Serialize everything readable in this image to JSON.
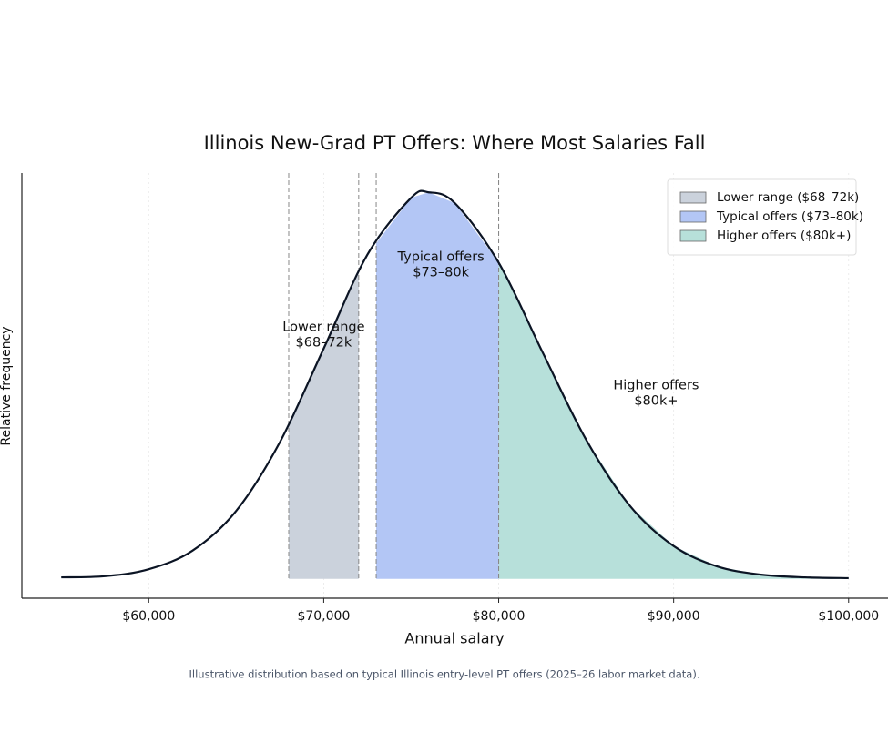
{
  "chart_data": {
    "type": "density",
    "title": "Illinois New-Grad PT Offers: Where Most Salaries Fall",
    "x_label": "Annual salary",
    "y_label": "Relative frequency",
    "footnote": "Illustrative distribution based on typical Illinois entry-level PT offers (2025–26 labor market data).",
    "x": [
      55000,
      57500,
      60000,
      62500,
      65000,
      67500,
      70000,
      72500,
      75000,
      76000,
      77500,
      80000,
      82500,
      85000,
      87500,
      90000,
      92500,
      95000,
      97500,
      100000
    ],
    "values": [
      0.004,
      0.007,
      0.025,
      0.073,
      0.176,
      0.354,
      0.596,
      0.839,
      0.986,
      1,
      0.972,
      0.818,
      0.587,
      0.36,
      0.189,
      0.085,
      0.032,
      0.011,
      0.004,
      0.002
    ],
    "color": "#0b1424",
    "xlim": [
      52750,
      102250
    ],
    "ylim": [
      -0.05,
      1.05
    ],
    "xticks": [
      {
        "value": 60000,
        "label": "$60,000"
      },
      {
        "value": 70000,
        "label": "$70,000"
      },
      {
        "value": 80000,
        "label": "$80,000"
      },
      {
        "value": 90000,
        "label": "$90,000"
      },
      {
        "value": 100000,
        "label": "$100,000"
      }
    ],
    "grid": "x",
    "legend": "upper right",
    "bands": [
      {
        "name": "Lower range ($68–72k)",
        "start": 68000,
        "end": 72000,
        "color": "#cbd2dc",
        "label": [
          "Lower range",
          "$68–72k"
        ]
      },
      {
        "name": "Typical offers ($73–80k)",
        "start": 73000,
        "end": 80000,
        "color": "#b3c6f5",
        "label": [
          "Typical offers",
          "$73–80k"
        ]
      },
      {
        "name": "Higher offers ($80k+)",
        "start": 80000,
        "end": 100000,
        "color": "#b7e0da",
        "label": [
          "Higher offers",
          "$80k+"
        ]
      }
    ]
  }
}
